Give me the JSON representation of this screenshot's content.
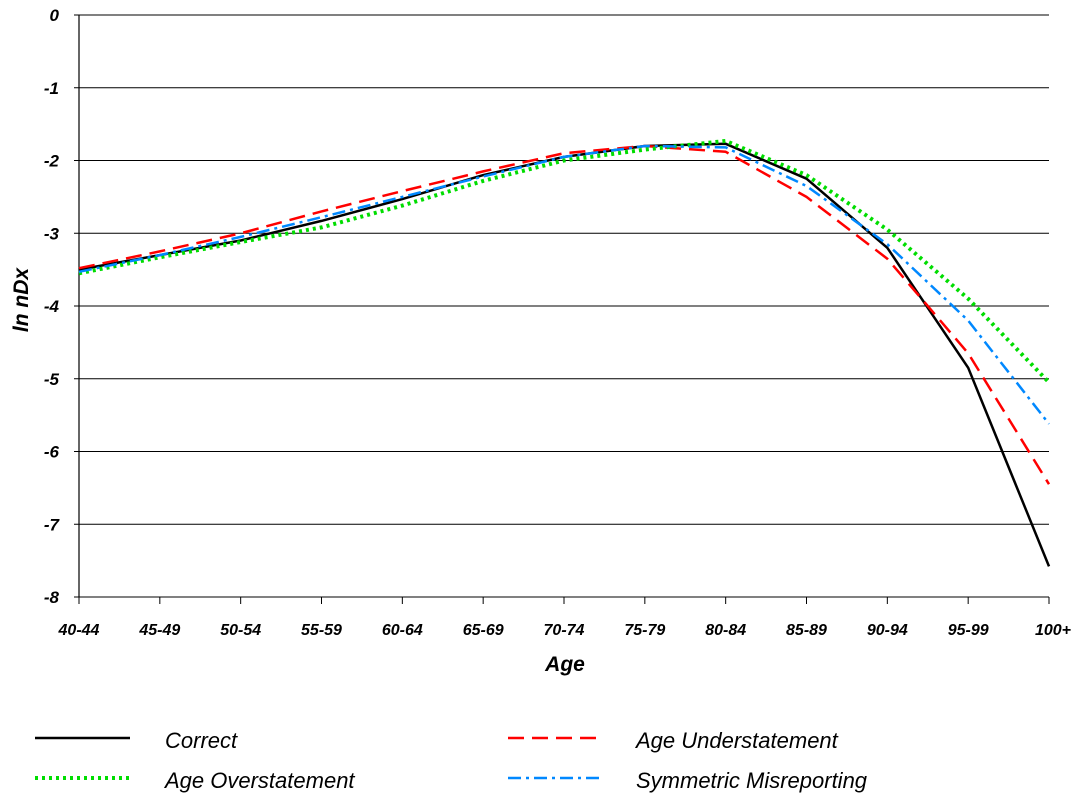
{
  "chart_data": {
    "type": "line",
    "categories": [
      "40-44",
      "45-49",
      "50-54",
      "55-59",
      "60-64",
      "65-69",
      "70-74",
      "75-79",
      "80-84",
      "85-89",
      "90-94",
      "95-99",
      "100+"
    ],
    "xlabel": "Age",
    "ylabel": "ln nDx",
    "ylim": [
      -8,
      0
    ],
    "yticks": [
      0,
      -1,
      -2,
      -3,
      -4,
      -5,
      -6,
      -7,
      -8
    ],
    "grid": "horizontal",
    "legend_position": "bottom",
    "series": [
      {
        "name": "Correct",
        "color": "#000000",
        "style": "solid",
        "values": [
          -3.5,
          -3.3,
          -3.1,
          -2.83,
          -2.53,
          -2.2,
          -1.95,
          -1.8,
          -1.77,
          -2.25,
          -3.2,
          -4.85,
          -7.58
        ]
      },
      {
        "name": "Age Understatement",
        "color": "#ff0000",
        "style": "dashed",
        "values": [
          -3.48,
          -3.25,
          -3.0,
          -2.7,
          -2.42,
          -2.15,
          -1.9,
          -1.8,
          -1.88,
          -2.5,
          -3.35,
          -4.65,
          -6.45
        ]
      },
      {
        "name": "Age Overstatement",
        "color": "#00dd00",
        "style": "dotted",
        "values": [
          -3.55,
          -3.33,
          -3.12,
          -2.92,
          -2.62,
          -2.28,
          -2.0,
          -1.85,
          -1.73,
          -2.2,
          -2.95,
          -3.9,
          -5.05
        ]
      },
      {
        "name": "Symmetric Misreporting",
        "color": "#0088ff",
        "style": "dashdot",
        "values": [
          -3.53,
          -3.3,
          -3.05,
          -2.78,
          -2.5,
          -2.22,
          -1.95,
          -1.8,
          -1.82,
          -2.35,
          -3.15,
          -4.2,
          -5.62
        ]
      }
    ]
  }
}
